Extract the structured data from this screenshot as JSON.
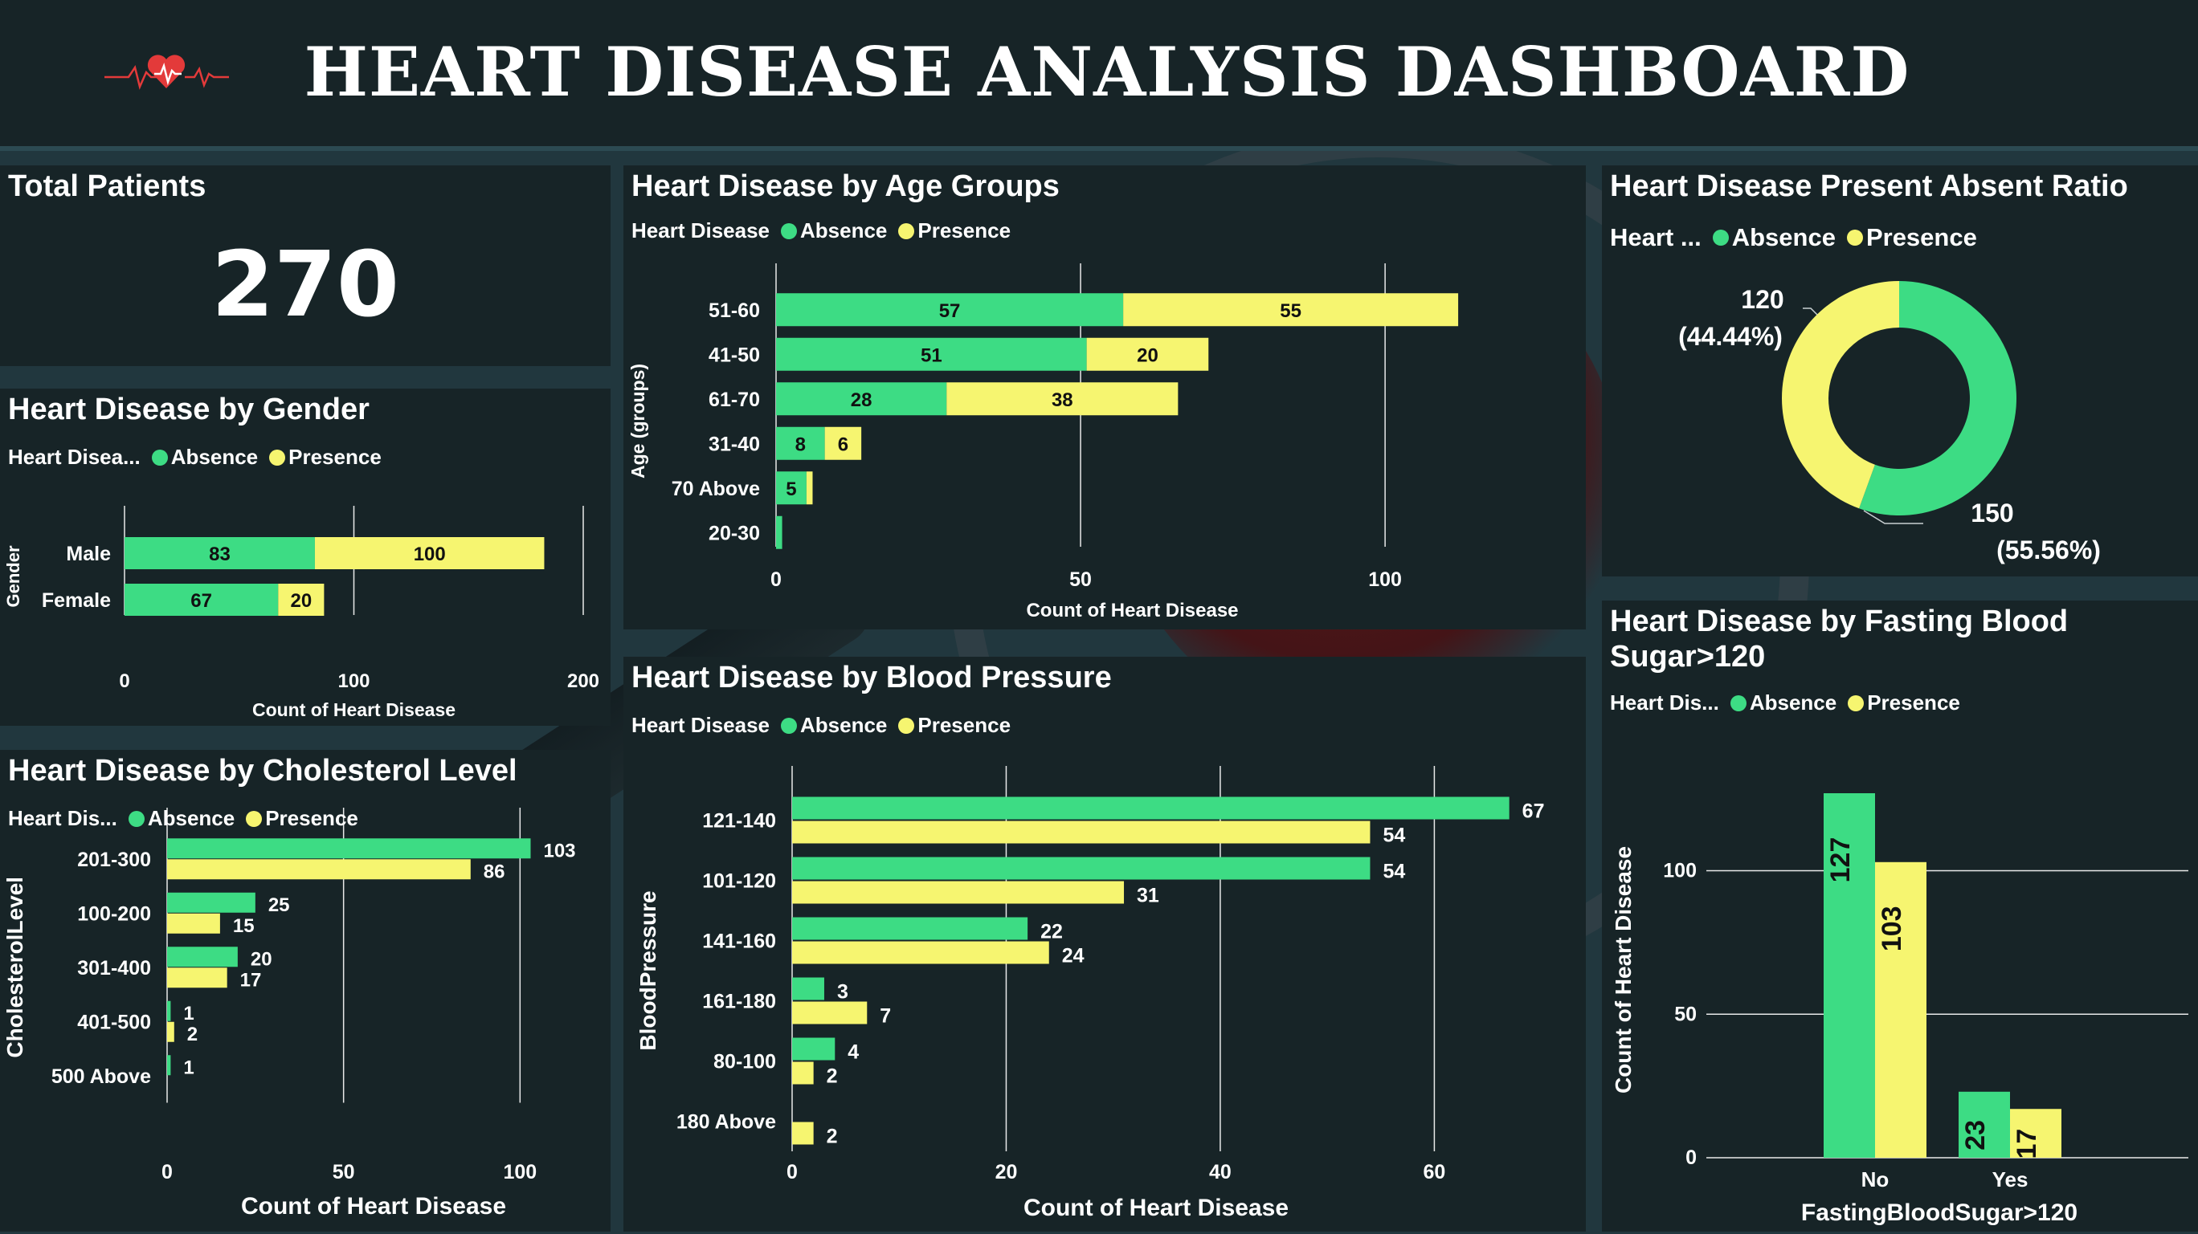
{
  "dashboard": {
    "title": "HEART DISEASE ANALYSIS DASHBOARD",
    "logo_icon": "heartbeat-icon"
  },
  "colors": {
    "absence": "#3ddc84",
    "presence": "#f6f570",
    "panel": "#172427",
    "background": "#21373e"
  },
  "kpi": {
    "title": "Total Patients",
    "value": "270"
  },
  "legend_labels": {
    "absence": "Absence",
    "presence": "Presence"
  },
  "chart_data": [
    {
      "id": "gender",
      "type": "bar",
      "orientation": "horizontal",
      "stacked": true,
      "title": "Heart Disease by Gender",
      "legend_title": "Heart Disea...",
      "categories": [
        "Male",
        "Female"
      ],
      "series": [
        {
          "name": "Absence",
          "values": [
            83,
            67
          ]
        },
        {
          "name": "Presence",
          "values": [
            100,
            20
          ]
        }
      ],
      "xlabel": "Count of Heart Disease",
      "ylabel": "Gender",
      "xlim": [
        0,
        200
      ],
      "xticks": [
        0,
        100,
        200
      ],
      "grid": true
    },
    {
      "id": "age",
      "type": "bar",
      "orientation": "horizontal",
      "stacked": true,
      "title": "Heart Disease by Age Groups",
      "legend_title": "Heart Disease",
      "categories": [
        "51-60",
        "41-50",
        "61-70",
        "31-40",
        "70 Above",
        "20-30"
      ],
      "series": [
        {
          "name": "Absence",
          "values": [
            57,
            51,
            28,
            8,
            5,
            1
          ]
        },
        {
          "name": "Presence",
          "values": [
            55,
            20,
            38,
            6,
            1,
            0
          ]
        }
      ],
      "labels": {
        "Absence": [
          "57",
          "51",
          "28",
          "8",
          "5",
          ""
        ],
        "Presence": [
          "55",
          "20",
          "38",
          "6",
          "",
          ""
        ]
      },
      "xlabel": "Count of Heart Disease",
      "ylabel": "Age (groups)",
      "xlim": [
        0,
        117
      ],
      "xticks": [
        0,
        50,
        100
      ],
      "grid": true
    },
    {
      "id": "ratio",
      "type": "pie",
      "donut": true,
      "title": "Heart Disease Present Absent Ratio",
      "legend_title": "Heart ...",
      "slices": [
        {
          "name": "Absence",
          "value": 150,
          "label": "150",
          "pct_label": "(55.56%)"
        },
        {
          "name": "Presence",
          "value": 120,
          "label": "120",
          "pct_label": "(44.44%)"
        }
      ]
    },
    {
      "id": "fbs",
      "type": "bar",
      "orientation": "vertical",
      "stacked": false,
      "title": "Heart Disease by Fasting Blood Sugar>120",
      "title_lines": [
        "Heart Disease by Fasting Blood",
        "Sugar>120"
      ],
      "legend_title": "Heart Dis...",
      "categories": [
        "No",
        "Yes"
      ],
      "series": [
        {
          "name": "Absence",
          "values": [
            127,
            23
          ]
        },
        {
          "name": "Presence",
          "values": [
            103,
            17
          ]
        }
      ],
      "xlabel": "FastingBloodSugar>120",
      "ylabel": "Count of Heart Disease",
      "ylim": [
        0,
        127
      ],
      "yticks": [
        0,
        50,
        100
      ],
      "grid": true
    },
    {
      "id": "cholesterol",
      "type": "bar",
      "orientation": "horizontal",
      "stacked": false,
      "title": "Heart Disease by Cholesterol Level",
      "legend_title": "Heart Dis...",
      "categories": [
        "201-300",
        "100-200",
        "301-400",
        "401-500",
        "500 Above"
      ],
      "series": [
        {
          "name": "Absence",
          "values": [
            103,
            25,
            20,
            1,
            1
          ]
        },
        {
          "name": "Presence",
          "values": [
            86,
            15,
            17,
            2,
            null
          ]
        }
      ],
      "xlabel": "Count of Heart Disease",
      "ylabel": "CholesterolLevel",
      "xlim": [
        0,
        117
      ],
      "xticks": [
        0,
        50,
        100
      ],
      "grid": true
    },
    {
      "id": "bp",
      "type": "bar",
      "orientation": "horizontal",
      "stacked": false,
      "title": "Heart Disease by Blood Pressure",
      "legend_title": "Heart Disease",
      "categories": [
        "121-140",
        "101-120",
        "141-160",
        "161-180",
        "80-100",
        "180 Above"
      ],
      "series": [
        {
          "name": "Absence",
          "values": [
            67,
            54,
            22,
            3,
            4,
            null
          ]
        },
        {
          "name": "Presence",
          "values": [
            54,
            31,
            24,
            7,
            2,
            2
          ]
        }
      ],
      "xlabel": "Count of Heart Disease",
      "ylabel": "BloodPressure",
      "xlim": [
        0,
        68
      ],
      "xticks": [
        0,
        20,
        40,
        60
      ],
      "grid": true
    }
  ]
}
